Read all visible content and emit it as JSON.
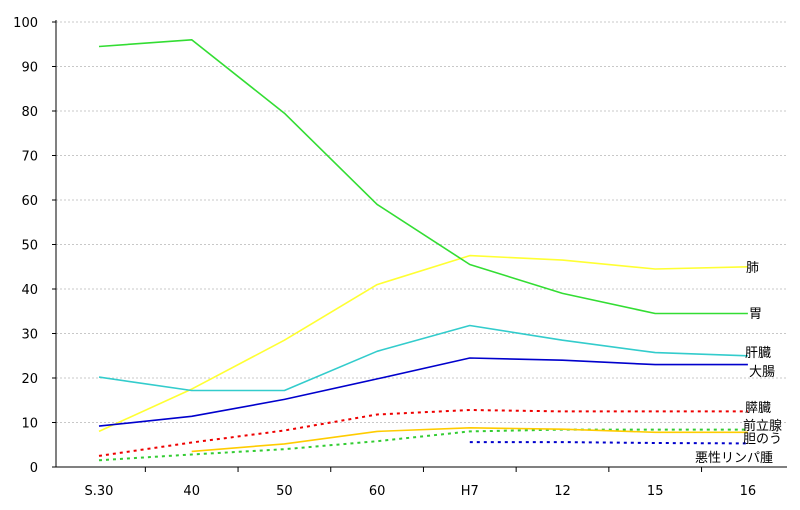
{
  "chart_data": {
    "type": "line",
    "categories": [
      "S.30",
      "40",
      "50",
      "60",
      "H7",
      "12",
      "15",
      "16"
    ],
    "ylim": [
      0,
      100
    ],
    "yticks": [
      0,
      10,
      20,
      30,
      40,
      50,
      60,
      70,
      80,
      90,
      100
    ],
    "grid": true,
    "series": [
      {
        "name": "肺",
        "color": "#ffff33",
        "dashed": false,
        "values": [
          8,
          17.5,
          28.5,
          41,
          47.5,
          46.5,
          44.5,
          45
        ]
      },
      {
        "name": "胃",
        "color": "#33dd33",
        "dashed": false,
        "values": [
          94.5,
          96,
          79.5,
          59,
          45.5,
          39,
          34.5,
          34.5
        ]
      },
      {
        "name": "肝臓",
        "color": "#33cccc",
        "dashed": false,
        "values": [
          20.2,
          17.2,
          17.2,
          26,
          31.8,
          28.5,
          25.7,
          25
        ]
      },
      {
        "name": "大腸",
        "color": "#0000cc",
        "dashed": false,
        "values": [
          9.2,
          11.4,
          15.2,
          19.8,
          24.5,
          24,
          23,
          23
        ]
      },
      {
        "name": "膵臓",
        "color": "#ee0000",
        "dashed": true,
        "values": [
          2.5,
          5.5,
          8.2,
          11.8,
          12.8,
          12.5,
          12.5,
          12.5
        ]
      },
      {
        "name": "前立腺",
        "color": "#33cc33",
        "dashed": true,
        "values": [
          1.5,
          2.8,
          4,
          5.8,
          8,
          8.4,
          8.4,
          8.4
        ]
      },
      {
        "name": "胆のう",
        "color": "#ffcc00",
        "dashed": false,
        "values": [
          null,
          3.5,
          5.2,
          8,
          8.8,
          8.5,
          7.8,
          7.8
        ]
      },
      {
        "name": "悪性リンパ腫",
        "color": "#0000cc",
        "dashed": true,
        "values": [
          null,
          null,
          null,
          null,
          5.6,
          5.6,
          5.4,
          5.3
        ]
      }
    ]
  }
}
